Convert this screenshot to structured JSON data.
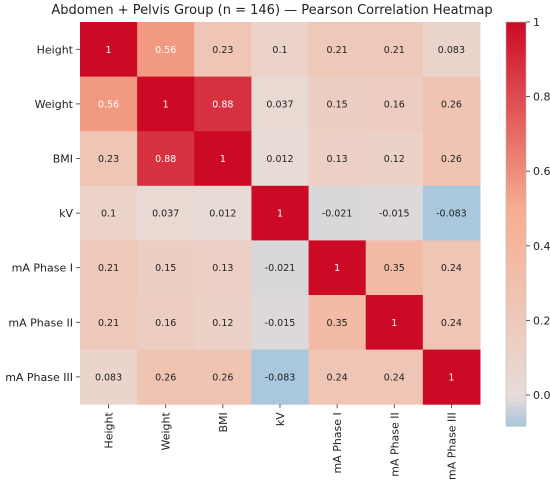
{
  "chart_data": {
    "type": "heatmap",
    "title": "Abdomen + Pelvis Group (n = 146) — Pearson Correlation Heatmap",
    "row_labels": [
      "Height",
      "Weight",
      "BMI",
      "kV",
      "mA Phase I",
      "mA Phase II",
      "mA Phase III"
    ],
    "col_labels": [
      "Height",
      "Weight",
      "BMI",
      "kV",
      "mA Phase I",
      "mA Phase II",
      "mA Phase III"
    ],
    "values": [
      [
        1,
        0.56,
        0.23,
        0.1,
        0.21,
        0.21,
        0.083
      ],
      [
        0.56,
        1,
        0.88,
        0.037,
        0.15,
        0.16,
        0.26
      ],
      [
        0.23,
        0.88,
        1,
        0.012,
        0.13,
        0.12,
        0.26
      ],
      [
        0.1,
        0.037,
        0.012,
        1,
        -0.021,
        -0.015,
        -0.083
      ],
      [
        0.21,
        0.15,
        0.13,
        -0.021,
        1,
        0.35,
        0.24
      ],
      [
        0.21,
        0.16,
        0.12,
        -0.015,
        0.35,
        1,
        0.24
      ],
      [
        0.083,
        0.26,
        0.26,
        -0.083,
        0.24,
        0.24,
        1
      ]
    ],
    "value_labels": [
      [
        "1",
        "0.56",
        "0.23",
        "0.1",
        "0.21",
        "0.21",
        "0.083"
      ],
      [
        "0.56",
        "1",
        "0.88",
        "0.037",
        "0.15",
        "0.16",
        "0.26"
      ],
      [
        "0.23",
        "0.88",
        "1",
        "0.012",
        "0.13",
        "0.12",
        "0.26"
      ],
      [
        "0.1",
        "0.037",
        "0.012",
        "1",
        "-0.021",
        "-0.015",
        "-0.083"
      ],
      [
        "0.21",
        "0.15",
        "0.13",
        "-0.021",
        "1",
        "0.35",
        "0.24"
      ],
      [
        "0.21",
        "0.16",
        "0.12",
        "-0.015",
        "0.35",
        "1",
        "0.24"
      ],
      [
        "0.083",
        "0.26",
        "0.26",
        "-0.083",
        "0.24",
        "0.24",
        "1"
      ]
    ],
    "colorbar": {
      "ticks": [
        0.0,
        0.2,
        0.4,
        0.6,
        0.8,
        1.0
      ],
      "tick_labels": [
        "0.0",
        "0.2",
        "0.4",
        "0.6",
        "0.8",
        "1"
      ],
      "range": [
        -0.083,
        1
      ]
    },
    "colormap": {
      "negative": "#a9c8dd",
      "zero": "#e8dcd8",
      "positive": "#cc0a26",
      "mid_positive": "#f7ad8f"
    }
  }
}
